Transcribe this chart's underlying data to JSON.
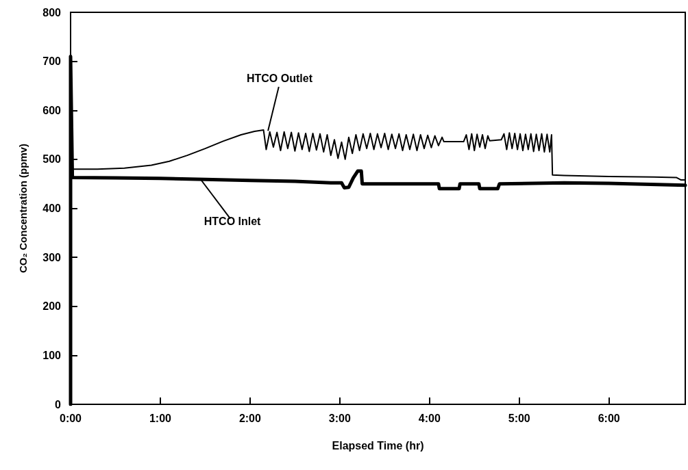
{
  "chart_data": {
    "type": "line",
    "xlabel": "Elapsed Time (hr)",
    "ylabel": "CO₂ Concentration (ppmv)",
    "xlim": [
      0,
      6.85
    ],
    "ylim": [
      0,
      800
    ],
    "xticks": [
      {
        "value": 0,
        "label": "0:00"
      },
      {
        "value": 1,
        "label": "1:00"
      },
      {
        "value": 2,
        "label": "2:00"
      },
      {
        "value": 3,
        "label": "3:00"
      },
      {
        "value": 4,
        "label": "4:00"
      },
      {
        "value": 5,
        "label": "5:00"
      },
      {
        "value": 6,
        "label": "6:00"
      }
    ],
    "yticks": [
      0,
      100,
      200,
      300,
      400,
      500,
      600,
      700,
      800
    ],
    "grid": false,
    "marker": "none",
    "line_style": "solid",
    "annotations": [
      {
        "text": "HTCO Outlet",
        "x": 2.2,
        "y": 558
      },
      {
        "text": "HTCO Inlet",
        "x": 1.45,
        "y": 459
      }
    ],
    "series": [
      {
        "color": "#000000",
        "x": [
          0,
          0.3,
          0.6,
          0.9,
          1.1,
          1.3,
          1.5,
          1.7,
          1.9,
          2.05,
          2.15,
          2.18,
          2.22,
          2.26,
          2.3,
          2.34,
          2.38,
          2.42,
          2.46,
          2.5,
          2.54,
          2.58,
          2.62,
          2.66,
          2.7,
          2.74,
          2.78,
          2.82,
          2.86,
          2.9,
          2.94,
          2.98,
          3.02,
          3.06,
          3.1,
          3.14,
          3.18,
          3.22,
          3.26,
          3.3,
          3.34,
          3.38,
          3.42,
          3.46,
          3.5,
          3.54,
          3.58,
          3.62,
          3.66,
          3.7,
          3.74,
          3.78,
          3.82,
          3.86,
          3.9,
          3.94,
          3.98,
          4.02,
          4.06,
          4.1,
          4.14,
          4.16,
          4.38,
          4.41,
          4.44,
          4.47,
          4.5,
          4.53,
          4.56,
          4.59,
          4.62,
          4.65,
          4.67,
          4.8,
          4.83,
          4.86,
          4.89,
          4.92,
          4.95,
          4.98,
          5.01,
          5.04,
          5.07,
          5.1,
          5.13,
          5.16,
          5.19,
          5.22,
          5.25,
          5.28,
          5.31,
          5.34,
          5.36,
          5.37,
          5.5,
          6.0,
          6.5,
          6.75,
          6.8,
          6.85
        ],
        "values": [
          480,
          480,
          482,
          488,
          496,
          508,
          522,
          537,
          550,
          557,
          560,
          520,
          556,
          525,
          555,
          518,
          556,
          522,
          555,
          517,
          554,
          520,
          553,
          516,
          553,
          519,
          552,
          515,
          550,
          508,
          540,
          502,
          535,
          500,
          545,
          512,
          550,
          518,
          552,
          522,
          553,
          520,
          552,
          524,
          553,
          520,
          551,
          522,
          552,
          518,
          550,
          520,
          551,
          518,
          550,
          522,
          549,
          524,
          548,
          528,
          545,
          536,
          536,
          550,
          520,
          552,
          518,
          551,
          525,
          550,
          522,
          548,
          538,
          540,
          552,
          520,
          554,
          522,
          553,
          520,
          552,
          518,
          551,
          520,
          552,
          516,
          551,
          518,
          552,
          515,
          551,
          515,
          550,
          468,
          467,
          465,
          464,
          463,
          458,
          458
        ]
      },
      {
        "color": "#000000",
        "x": [
          0,
          0,
          0.02,
          0.5,
          1.0,
          1.5,
          2.0,
          2.5,
          2.9,
          3.02,
          3.05,
          3.1,
          3.15,
          3.2,
          3.24,
          3.25,
          4.1,
          4.11,
          4.33,
          4.34,
          4.55,
          4.56,
          4.76,
          4.78,
          5.5,
          6.0,
          6.85
        ],
        "values": [
          0,
          710,
          463,
          462,
          461,
          459,
          457,
          455,
          452,
          452,
          442,
          443,
          462,
          476,
          476,
          450,
          450,
          440,
          440,
          450,
          450,
          440,
          440,
          450,
          452,
          451,
          447
        ]
      }
    ]
  }
}
